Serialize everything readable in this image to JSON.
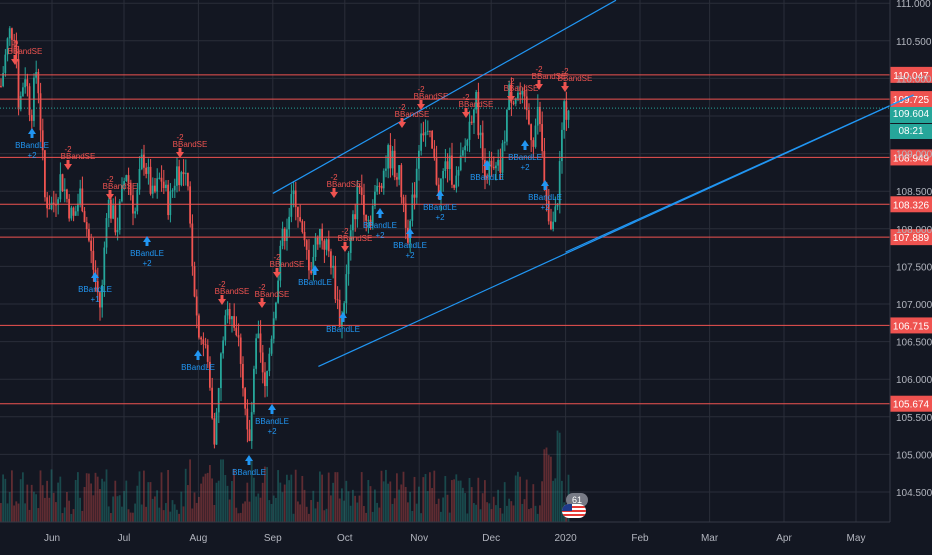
{
  "app": {
    "theme": "dark",
    "colors": {
      "background": "#131722",
      "grid": "#2a2e39",
      "up": "#26a69a",
      "down": "#ef5350",
      "level_line": "#ef5350",
      "trend_line": "#2196f3",
      "current_price_line": "#26a69a",
      "axis_text": "#b2b5be"
    }
  },
  "price_axis": {
    "ticks": [
      "111.000",
      "110.500",
      "110.000",
      "109.500",
      "109.000",
      "108.500",
      "108.000",
      "107.500",
      "107.000",
      "106.500",
      "106.000",
      "105.500",
      "105.000",
      "104.500"
    ],
    "level_badges": [
      "110.047",
      "109.725",
      "108.949",
      "108.326",
      "107.889",
      "106.715",
      "105.674"
    ],
    "current_price": "109.604",
    "countdown": "08:21"
  },
  "time_axis": {
    "labels": [
      "Jun",
      "Jul",
      "Aug",
      "Sep",
      "Oct",
      "Nov",
      "Dec",
      "2020",
      "Feb",
      "Mar",
      "Apr",
      "May"
    ]
  },
  "chart_data": {
    "type": "candlestick",
    "ylim": [
      104.3,
      111.0
    ],
    "horizontal_levels": [
      110.047,
      109.725,
      108.949,
      108.326,
      107.889,
      106.715,
      105.674
    ],
    "current_price": 109.604,
    "trend_channel": {
      "upper": [
        [
          "2019-09-01",
          108.47
        ],
        [
          "2020-01-22",
          111.04
        ]
      ],
      "lower": [
        [
          "2019-09-20",
          106.17
        ],
        [
          "2020-05-25",
          109.78
        ]
      ],
      "mid": [
        [
          "2020-01-01",
          107.69
        ],
        [
          "2020-05-25",
          109.78
        ]
      ]
    },
    "signal_labels": {
      "long": "BBandLE",
      "short": "BBandSE",
      "long_qty": "+2",
      "short_qty": "-2",
      "long_qty_half": "+1"
    },
    "indicator_badge": "61"
  }
}
